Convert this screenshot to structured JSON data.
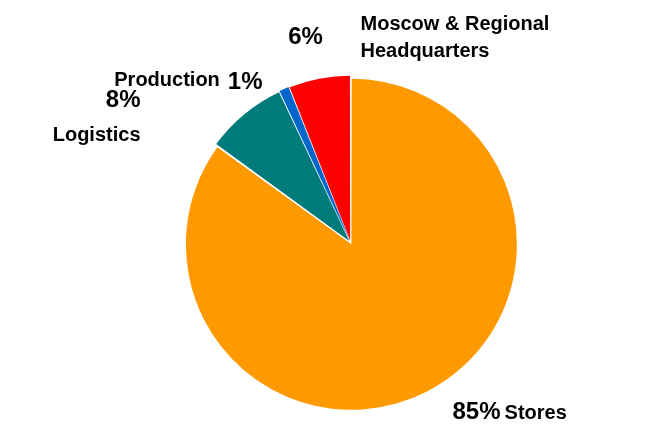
{
  "chart_data": {
    "type": "pie",
    "categories": [
      "Stores",
      "Logistics",
      "Production",
      "Moscow & Regional Headquarters"
    ],
    "values": [
      85,
      8,
      1,
      6
    ],
    "value_labels": [
      "85%",
      "8%",
      "1%",
      "6%"
    ],
    "colors": [
      "#ff9900",
      "#007b7b",
      "#0066cc",
      "#ff0000"
    ],
    "data_labels": true
  }
}
